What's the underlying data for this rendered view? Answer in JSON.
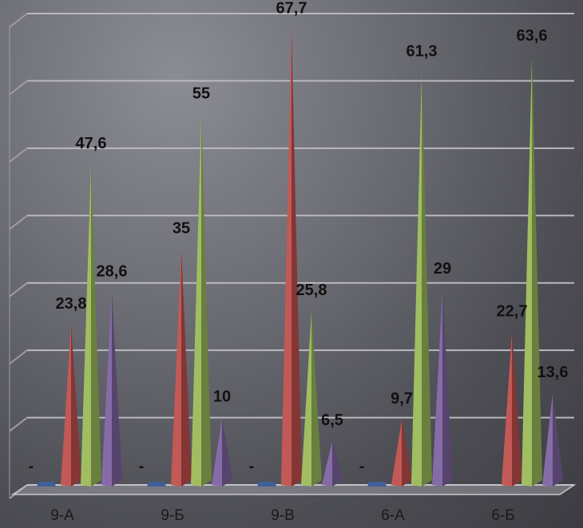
{
  "chart_data": {
    "type": "bar",
    "style": "3d-pyramid",
    "categories": [
      "9-А",
      "9-Б",
      "9-В",
      "6-А",
      "6-Б"
    ],
    "series": [
      {
        "color": "#3f5f98",
        "values": [
          0,
          0,
          0,
          0,
          null
        ],
        "labels": [
          "-",
          "-",
          "-",
          "-",
          ""
        ]
      },
      {
        "color": "#c0504d",
        "values": [
          23.8,
          35,
          67.7,
          9.7,
          22.7
        ],
        "labels": [
          "23,8",
          "35",
          "67,7",
          "9,7",
          "22,7"
        ]
      },
      {
        "color": "#9bbb59",
        "values": [
          47.6,
          55,
          25.8,
          61.3,
          63.6
        ],
        "labels": [
          "47,6",
          "55",
          "25,8",
          "61,3",
          "63,6"
        ]
      },
      {
        "color": "#8064a2",
        "values": [
          28.6,
          10,
          6.5,
          29,
          13.6
        ],
        "labels": [
          "28,6",
          "10",
          "6,5",
          "29",
          "13,6"
        ]
      }
    ],
    "ylim": [
      0,
      70
    ],
    "grid": true,
    "legend": "none"
  }
}
